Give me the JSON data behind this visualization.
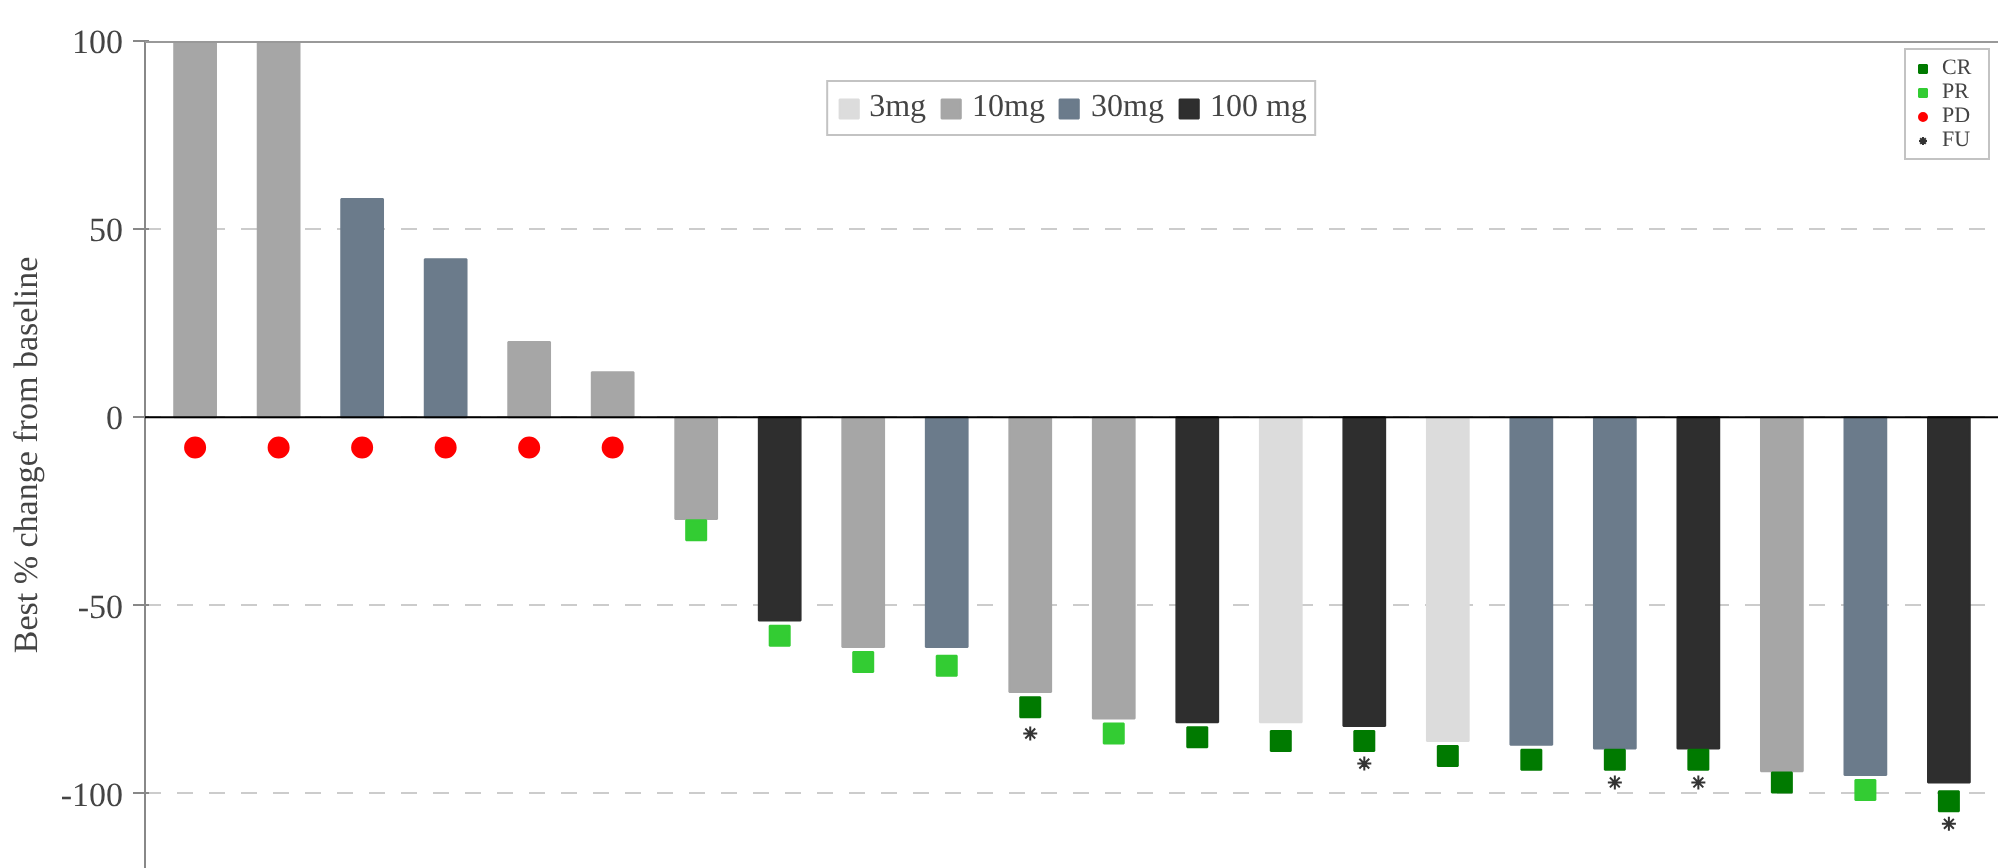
{
  "chart_data": {
    "type": "bar",
    "ylabel": "Best % change from baseline",
    "categories": [
      null,
      null,
      null,
      null,
      null,
      null,
      null,
      null,
      null,
      null,
      null,
      null,
      null,
      null,
      null,
      null,
      null,
      null,
      null,
      null,
      null,
      null
    ],
    "ylim": [
      -120,
      100
    ],
    "yticks": [
      -100,
      -50,
      0,
      50,
      100
    ],
    "grid": "y",
    "legend": "top",
    "line_style": "dashed",
    "ref_lines": [
      {
        "axis": "y",
        "value": 0,
        "color": "#000000",
        "line_style": "solid"
      }
    ],
    "series": [
      {
        "name": "3mg",
        "color": "#dcdcdc",
        "values": [
          null,
          null,
          null,
          null,
          null,
          null,
          null,
          null,
          null,
          null,
          null,
          null,
          null,
          -81,
          null,
          -86,
          null,
          null,
          null,
          null,
          null,
          null
        ]
      },
      {
        "name": "10mg",
        "color": "#a6a6a6",
        "values": [
          100,
          100,
          null,
          null,
          20,
          12,
          -27,
          null,
          -61,
          null,
          -73,
          -80,
          null,
          null,
          null,
          null,
          null,
          null,
          null,
          -94,
          null,
          null
        ]
      },
      {
        "name": "30mg",
        "color": "#6b7b8b",
        "values": [
          null,
          null,
          58,
          42,
          null,
          null,
          null,
          null,
          null,
          -61,
          null,
          null,
          null,
          null,
          null,
          null,
          -87,
          -88,
          null,
          null,
          -95,
          null
        ]
      },
      {
        "name": "100 mg",
        "color": "#2e2e2e",
        "values": [
          null,
          null,
          null,
          null,
          null,
          null,
          null,
          -54,
          null,
          null,
          null,
          null,
          -81,
          null,
          -82,
          null,
          null,
          null,
          -88,
          null,
          null,
          -97
        ]
      },
      {
        "name": "CR",
        "type": "scatter",
        "marker": "square",
        "color": "#007a00",
        "values": [
          null,
          null,
          null,
          null,
          null,
          null,
          null,
          null,
          null,
          null,
          -77,
          null,
          -85,
          -86,
          -86,
          -90,
          -91,
          -91,
          -91,
          -97,
          null,
          -102
        ]
      },
      {
        "name": "PR",
        "type": "scatter",
        "marker": "square",
        "color": "#33cc33",
        "values": [
          null,
          null,
          null,
          null,
          null,
          null,
          -30,
          -58,
          -65,
          -66,
          null,
          -84,
          null,
          null,
          null,
          null,
          null,
          null,
          null,
          null,
          -99,
          null
        ]
      },
      {
        "name": "PD",
        "type": "scatter",
        "marker": "circle",
        "color": "#ff0000",
        "values": [
          -8,
          -8,
          -8,
          -8,
          -8,
          -8,
          null,
          null,
          null,
          null,
          null,
          null,
          null,
          null,
          null,
          null,
          null,
          null,
          null,
          null,
          null,
          null
        ]
      },
      {
        "name": "FU",
        "type": "scatter",
        "marker": "cross",
        "color": "#333333",
        "values": [
          null,
          null,
          null,
          null,
          null,
          null,
          null,
          null,
          null,
          null,
          -84,
          null,
          null,
          null,
          -92,
          null,
          null,
          -97,
          -97,
          null,
          null,
          -108
        ]
      }
    ]
  }
}
